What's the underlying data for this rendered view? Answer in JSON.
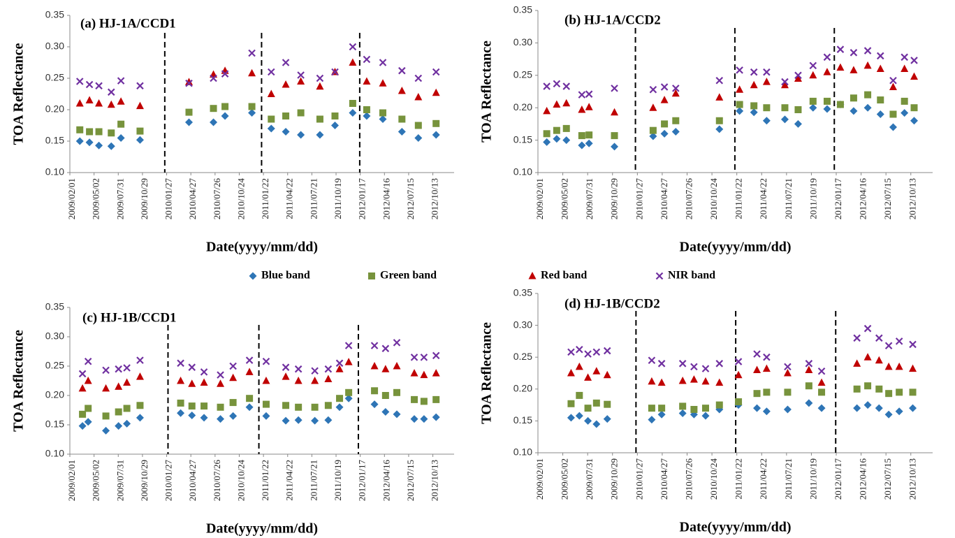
{
  "legend": [
    {
      "name": "Blue band",
      "color": "#2e75b6",
      "marker": "diamond"
    },
    {
      "name": "Green band",
      "color": "#77933c",
      "marker": "square"
    },
    {
      "name": "Red band",
      "color": "#c00000",
      "marker": "triangle"
    },
    {
      "name": "NIR band",
      "color": "#7030a0",
      "marker": "cross"
    }
  ],
  "chart_data": [
    {
      "type": "scatter",
      "title": "(a) HJ-1A/CCD1",
      "x_label": "Date(yyyy/mm/dd)",
      "y_label": "TOA Reflectance",
      "x": [
        "2009/03/10",
        "2009/04/15",
        "2009/05/20",
        "2009/07/05",
        "2009/08/10",
        "2009/10/20",
        "2010/04/20",
        "2010/07/20",
        "2010/09/01",
        "2010/12/10",
        "2011/02/20",
        "2011/04/15",
        "2011/06/10",
        "2011/08/20",
        "2011/10/15",
        "2011/12/20",
        "2012/02/10",
        "2012/04/10",
        "2012/06/20",
        "2012/08/20",
        "2012/10/25"
      ],
      "series": [
        {
          "values": [
            0.15,
            0.148,
            0.143,
            0.142,
            0.155,
            0.152,
            0.18,
            0.18,
            0.19,
            0.195,
            0.17,
            0.165,
            0.16,
            0.16,
            0.175,
            0.195,
            0.19,
            0.185,
            0.165,
            0.155,
            0.16
          ]
        },
        {
          "values": [
            0.168,
            0.165,
            0.165,
            0.163,
            0.177,
            0.166,
            0.196,
            0.202,
            0.205,
            0.205,
            0.185,
            0.19,
            0.195,
            0.185,
            0.19,
            0.21,
            0.2,
            0.195,
            0.185,
            0.175,
            0.178
          ]
        },
        {
          "values": [
            0.21,
            0.215,
            0.21,
            0.208,
            0.213,
            0.206,
            0.244,
            0.256,
            0.262,
            0.258,
            0.225,
            0.24,
            0.245,
            0.237,
            0.26,
            0.275,
            0.245,
            0.242,
            0.23,
            0.22,
            0.227
          ]
        },
        {
          "values": [
            0.245,
            0.24,
            0.238,
            0.228,
            0.246,
            0.238,
            0.242,
            0.25,
            0.257,
            0.29,
            0.26,
            0.275,
            0.255,
            0.25,
            0.26,
            0.3,
            0.28,
            0.275,
            0.262,
            0.25,
            0.26
          ]
        }
      ],
      "separators": [
        "2010/01/20",
        "2011/01/15",
        "2012/01/15"
      ],
      "xlim": [
        "2009/02/01",
        "2012/12/31"
      ],
      "xticks": [
        "2009/02/01",
        "2009/05/02",
        "2009/07/31",
        "2009/10/29",
        "2010/01/27",
        "2010/04/27",
        "2010/07/26",
        "2010/10/24",
        "2011/01/22",
        "2011/04/22",
        "2011/07/21",
        "2011/10/19",
        "2012/01/17",
        "2012/04/16",
        "2012/07/15",
        "2012/10/13"
      ],
      "ylim": [
        0.1,
        0.35
      ],
      "yticks": [
        {
          "value": 0.1,
          "label": "0.10"
        },
        {
          "value": 0.15,
          "label": "0.15"
        },
        {
          "value": 0.2,
          "label": "0.20"
        },
        {
          "value": 0.25,
          "label": "0.25"
        },
        {
          "value": 0.3,
          "label": "0.30"
        },
        {
          "value": 0.35,
          "label": "0.35"
        }
      ]
    },
    {
      "type": "scatter",
      "title": "(b) HJ-1A/CCD2",
      "x_label": "Date(yyyy/mm/dd)",
      "y_label": "TOA Reflectance",
      "x": [
        "2009/03/05",
        "2009/04/10",
        "2009/05/15",
        "2009/07/10",
        "2009/08/05",
        "2009/11/05",
        "2010/03/25",
        "2010/05/05",
        "2010/06/15",
        "2010/11/20",
        "2011/02/01",
        "2011/03/25",
        "2011/05/10",
        "2011/07/15",
        "2011/09/01",
        "2011/10/25",
        "2011/12/15",
        "2012/02/01",
        "2012/03/20",
        "2012/05/10",
        "2012/06/25",
        "2012/08/10",
        "2012/09/20",
        "2012/10/25"
      ],
      "series": [
        {
          "values": [
            0.147,
            0.152,
            0.15,
            0.142,
            0.145,
            0.14,
            0.156,
            0.16,
            0.163,
            0.167,
            0.195,
            0.193,
            0.18,
            0.182,
            0.175,
            0.2,
            0.198,
            0.205,
            0.195,
            0.2,
            0.19,
            0.17,
            0.192,
            0.18
          ]
        },
        {
          "values": [
            0.16,
            0.165,
            0.168,
            0.157,
            0.158,
            0.157,
            0.165,
            0.175,
            0.18,
            0.18,
            0.205,
            0.203,
            0.2,
            0.2,
            0.197,
            0.21,
            0.21,
            0.205,
            0.215,
            0.22,
            0.212,
            0.19,
            0.21,
            0.2
          ]
        },
        {
          "values": [
            0.195,
            0.205,
            0.207,
            0.197,
            0.201,
            0.193,
            0.2,
            0.212,
            0.222,
            0.216,
            0.228,
            0.235,
            0.24,
            0.235,
            0.245,
            0.25,
            0.255,
            0.262,
            0.258,
            0.265,
            0.26,
            0.232,
            0.26,
            0.248
          ]
        },
        {
          "values": [
            0.233,
            0.237,
            0.233,
            0.22,
            0.221,
            0.23,
            0.228,
            0.232,
            0.23,
            0.242,
            0.258,
            0.255,
            0.255,
            0.24,
            0.25,
            0.265,
            0.278,
            0.29,
            0.285,
            0.288,
            0.28,
            0.242,
            0.278,
            0.273
          ]
        }
      ],
      "separators": [
        "2010/01/20",
        "2011/01/15",
        "2012/01/10"
      ],
      "xlim": [
        "2009/02/01",
        "2012/12/31"
      ],
      "xticks": [
        "2009/02/01",
        "2009/05/02",
        "2009/07/31",
        "2009/10/29",
        "2010/01/27",
        "2010/04/27",
        "2010/07/26",
        "2010/10/24",
        "2011/01/22",
        "2011/04/22",
        "2011/07/21",
        "2011/10/19",
        "2012/01/17",
        "2012/04/16",
        "2012/07/15",
        "2012/10/13"
      ],
      "ylim": [
        0.1,
        0.35
      ],
      "yticks": [
        {
          "value": 0.1,
          "label": "0.10"
        },
        {
          "value": 0.15,
          "label": "0.15"
        },
        {
          "value": 0.2,
          "label": "0.20"
        },
        {
          "value": 0.25,
          "label": "0.25"
        },
        {
          "value": 0.3,
          "label": "0.30"
        },
        {
          "value": 0.35,
          "label": "0.35"
        }
      ]
    },
    {
      "type": "scatter",
      "title": "(c) HJ-1B/CCD1",
      "x_label": "Date(yyyy/mm/dd)",
      "y_label": "TOA Reflectance",
      "x": [
        "2009/03/20",
        "2009/04/10",
        "2009/06/15",
        "2009/08/01",
        "2009/09/01",
        "2009/10/20",
        "2010/03/20",
        "2010/05/01",
        "2010/06/15",
        "2010/08/15",
        "2010/10/01",
        "2010/12/01",
        "2011/02/01",
        "2011/04/15",
        "2011/06/01",
        "2011/08/01",
        "2011/09/20",
        "2011/11/01",
        "2011/12/05",
        "2012/03/10",
        "2012/04/20",
        "2012/06/01",
        "2012/08/05",
        "2012/09/10",
        "2012/10/25"
      ],
      "series": [
        {
          "values": [
            0.148,
            0.155,
            0.14,
            0.148,
            0.152,
            0.162,
            0.17,
            0.166,
            0.162,
            0.16,
            0.165,
            0.18,
            0.165,
            0.157,
            0.158,
            0.157,
            0.158,
            0.18,
            0.195,
            0.185,
            0.172,
            0.168,
            0.16,
            0.16,
            0.163
          ]
        },
        {
          "values": [
            0.168,
            0.178,
            0.165,
            0.172,
            0.178,
            0.183,
            0.187,
            0.182,
            0.182,
            0.18,
            0.188,
            0.195,
            0.185,
            0.183,
            0.18,
            0.18,
            0.183,
            0.195,
            0.205,
            0.208,
            0.2,
            0.205,
            0.193,
            0.19,
            0.193
          ]
        },
        {
          "values": [
            0.212,
            0.225,
            0.212,
            0.215,
            0.222,
            0.232,
            0.225,
            0.22,
            0.222,
            0.22,
            0.23,
            0.24,
            0.225,
            0.232,
            0.225,
            0.225,
            0.228,
            0.245,
            0.257,
            0.25,
            0.245,
            0.25,
            0.238,
            0.235,
            0.238
          ]
        },
        {
          "values": [
            0.237,
            0.258,
            0.243,
            0.245,
            0.247,
            0.26,
            0.255,
            0.248,
            0.24,
            0.235,
            0.25,
            0.26,
            0.258,
            0.248,
            0.245,
            0.242,
            0.245,
            0.255,
            0.285,
            0.285,
            0.28,
            0.29,
            0.265,
            0.265,
            0.268
          ]
        }
      ],
      "separators": [
        "2010/02/01",
        "2011/01/05",
        "2012/01/10"
      ],
      "xlim": [
        "2009/02/01",
        "2012/12/31"
      ],
      "xticks": [
        "2009/02/01",
        "2009/05/02",
        "2009/07/31",
        "2009/10/29",
        "2010/01/27",
        "2010/04/27",
        "2010/07/26",
        "2010/10/24",
        "2011/01/22",
        "2011/04/22",
        "2011/07/21",
        "2011/10/19",
        "2012/01/17",
        "2012/04/16",
        "2012/07/15",
        "2012/10/13"
      ],
      "ylim": [
        0.1,
        0.35
      ],
      "yticks": [
        {
          "value": 0.1,
          "label": "0.10"
        },
        {
          "value": 0.15,
          "label": "0.15"
        },
        {
          "value": 0.2,
          "label": "0.20"
        },
        {
          "value": 0.25,
          "label": "0.25"
        },
        {
          "value": 0.3,
          "label": "0.30"
        },
        {
          "value": 0.35,
          "label": "0.35"
        }
      ]
    },
    {
      "type": "scatter",
      "title": "(d) HJ-1B/CCD2",
      "x_label": "Date(yyyy/mm/dd)",
      "y_label": "TOA Reflectance",
      "x": [
        "2009/06/01",
        "2009/07/01",
        "2009/08/01",
        "2009/09/01",
        "2009/10/10",
        "2010/03/20",
        "2010/04/25",
        "2010/07/10",
        "2010/08/20",
        "2010/10/01",
        "2010/11/20",
        "2011/01/28",
        "2011/04/05",
        "2011/05/10",
        "2011/07/25",
        "2011/10/10",
        "2011/11/25",
        "2012/04/01",
        "2012/05/10",
        "2012/06/20",
        "2012/07/25",
        "2012/09/01",
        "2012/10/20"
      ],
      "series": [
        {
          "values": [
            0.155,
            0.158,
            0.15,
            0.145,
            0.153,
            0.152,
            0.16,
            0.162,
            0.16,
            0.158,
            0.168,
            0.175,
            0.17,
            0.165,
            0.168,
            0.178,
            0.17,
            0.17,
            0.175,
            0.17,
            0.16,
            0.165,
            0.17
          ]
        },
        {
          "values": [
            0.177,
            0.19,
            0.17,
            0.178,
            0.176,
            0.17,
            0.17,
            0.173,
            0.168,
            0.17,
            0.175,
            0.18,
            0.193,
            0.195,
            0.195,
            0.205,
            0.195,
            0.2,
            0.205,
            0.2,
            0.193,
            0.195,
            0.195
          ]
        },
        {
          "values": [
            0.225,
            0.235,
            0.218,
            0.228,
            0.222,
            0.212,
            0.21,
            0.213,
            0.215,
            0.212,
            0.21,
            0.222,
            0.23,
            0.232,
            0.225,
            0.23,
            0.21,
            0.24,
            0.25,
            0.245,
            0.235,
            0.235,
            0.232
          ]
        },
        {
          "values": [
            0.258,
            0.262,
            0.255,
            0.258,
            0.26,
            0.245,
            0.24,
            0.24,
            0.235,
            0.232,
            0.24,
            0.243,
            0.255,
            0.25,
            0.235,
            0.24,
            0.228,
            0.28,
            0.295,
            0.28,
            0.268,
            0.275,
            0.27
          ]
        }
      ],
      "separators": [
        "2010/01/22",
        "2011/01/18",
        "2012/01/15"
      ],
      "xlim": [
        "2009/02/01",
        "2012/12/31"
      ],
      "xticks": [
        "2009/02/01",
        "2009/05/02",
        "2009/07/31",
        "2009/10/29",
        "2010/01/27",
        "2010/04/27",
        "2010/07/26",
        "2010/10/24",
        "2011/01/22",
        "2011/04/22",
        "2011/07/21",
        "2011/10/19",
        "2012/01/17",
        "2012/04/16",
        "2012/07/15",
        "2012/10/13"
      ],
      "ylim": [
        0.1,
        0.35
      ],
      "yticks": [
        {
          "value": 0.1,
          "label": "0.10"
        },
        {
          "value": 0.15,
          "label": "0.15"
        },
        {
          "value": 0.2,
          "label": "0.20"
        },
        {
          "value": 0.25,
          "label": "0.25"
        },
        {
          "value": 0.3,
          "label": "0.30"
        },
        {
          "value": 0.35,
          "label": "0.35"
        }
      ]
    }
  ]
}
